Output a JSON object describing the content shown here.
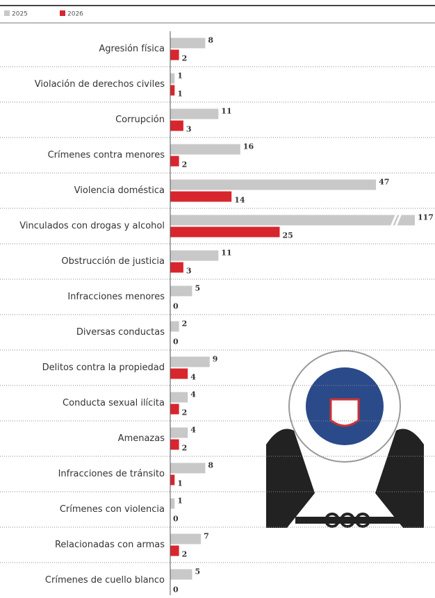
{
  "chart_data": {
    "type": "bar",
    "orientation": "horizontal",
    "categories": [
      "Agresión física",
      "Violación de derechos civiles",
      "Corrupción",
      "Crímenes contra menores",
      "Violencia doméstica",
      "Vinculados con drogas y alcohol",
      "Obstrucción de justicia",
      "Infracciones menores",
      "Diversas conductas",
      "Delitos contra la propiedad",
      "Conducta sexual ilícita",
      "Amenazas",
      "Infracciones de tránsito",
      "Crímenes con violencia",
      "Relacionadas con armas",
      "Crímenes de cuello blanco"
    ],
    "series": [
      {
        "name": "2025",
        "color": "#c8c8c8",
        "values": [
          8,
          1,
          11,
          16,
          47,
          117,
          11,
          5,
          2,
          9,
          4,
          4,
          8,
          1,
          7,
          5
        ]
      },
      {
        "name": "2026",
        "color": "#d7262e",
        "values": [
          2,
          1,
          3,
          2,
          14,
          25,
          3,
          0,
          0,
          4,
          2,
          2,
          1,
          0,
          2,
          0
        ]
      }
    ],
    "legend": "top-left"
  }
}
